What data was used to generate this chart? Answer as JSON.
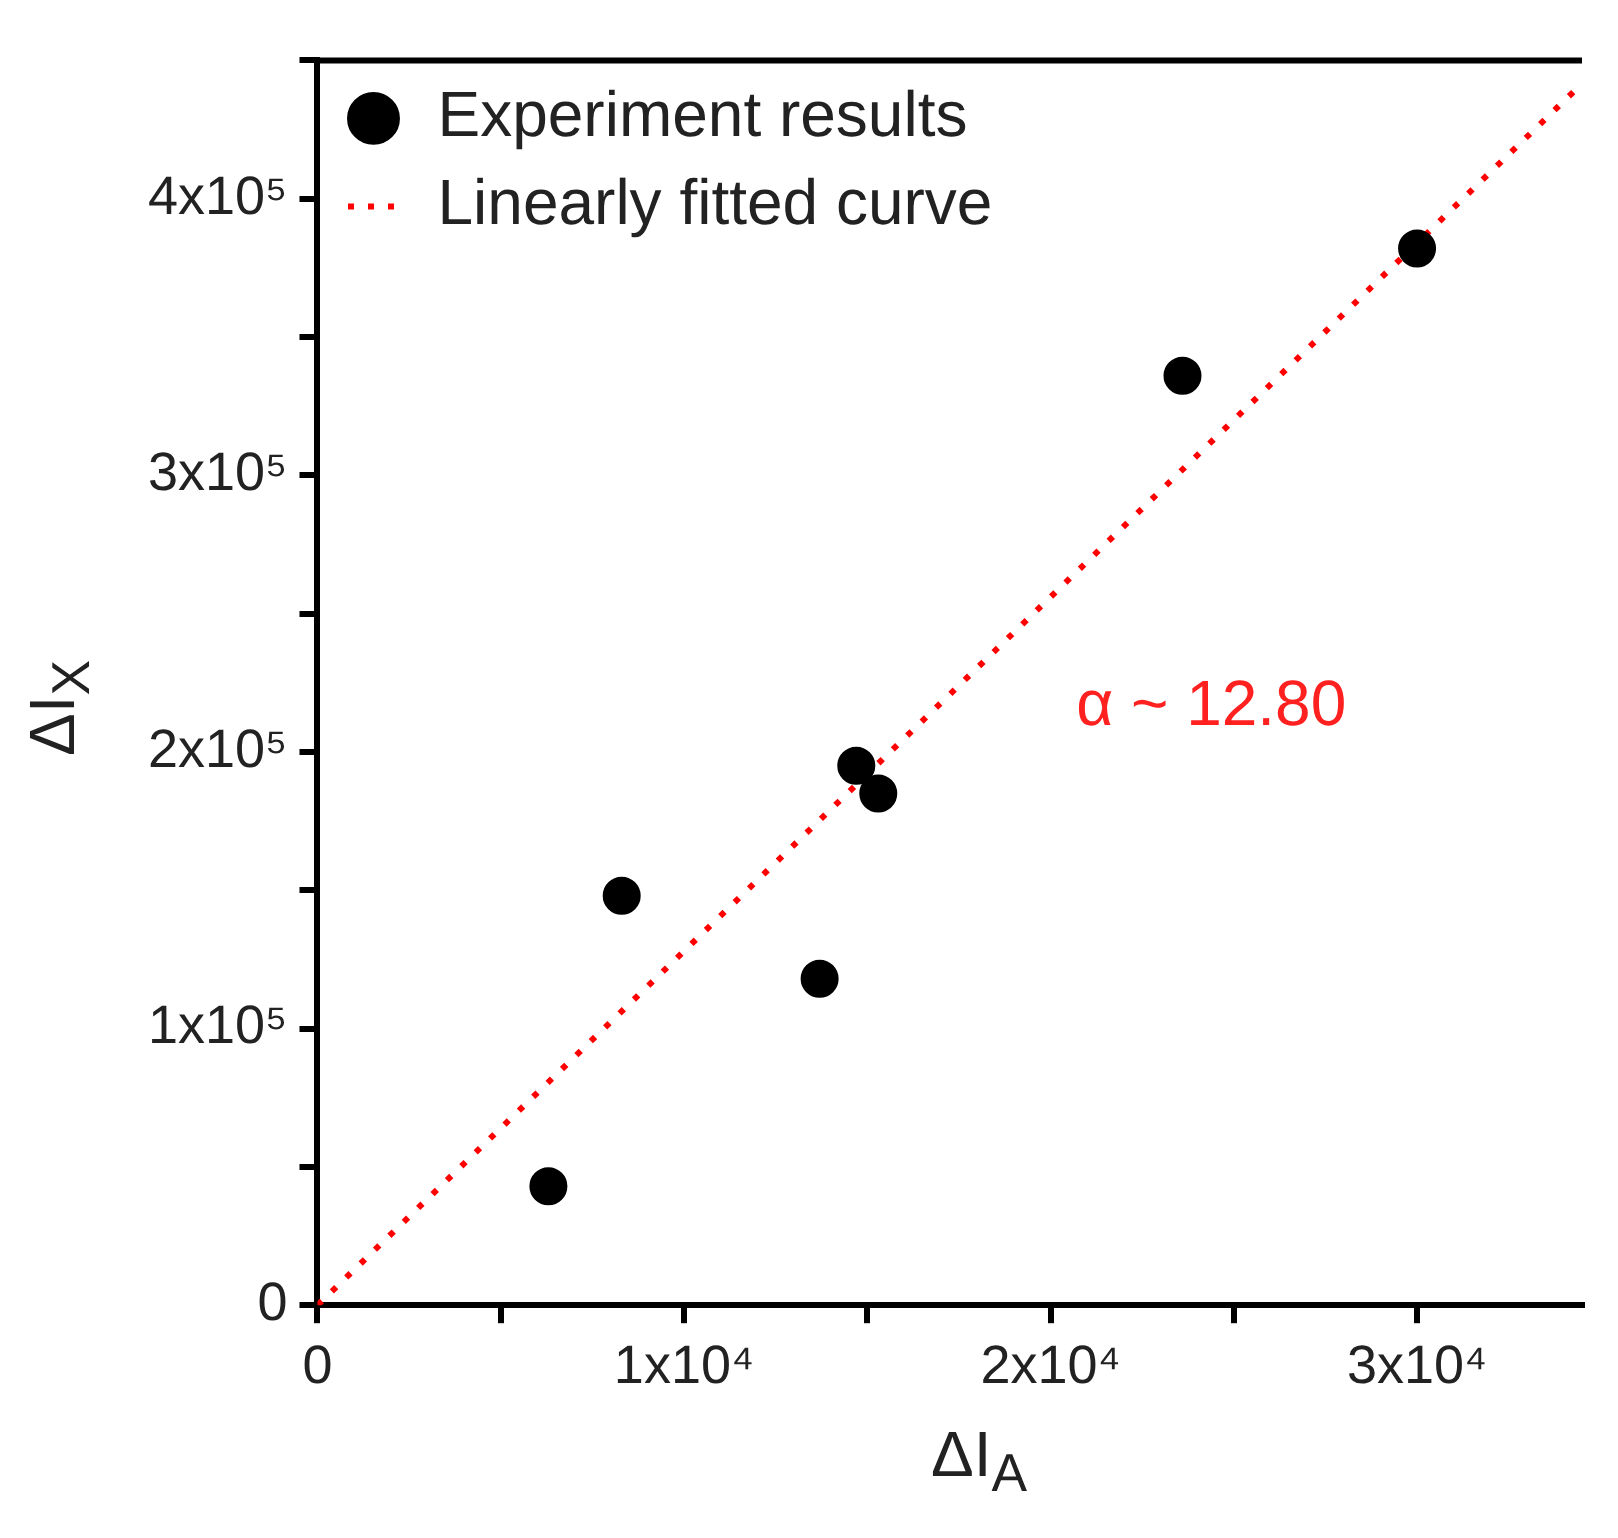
{
  "chart_data": {
    "type": "scatter",
    "xlabel": "ΔI$_{A}$",
    "ylabel": "ΔI$_{X}$",
    "xlim": [
      0,
      34500
    ],
    "ylim": [
      0,
      450000
    ],
    "xticks": [
      0,
      {
        "value": 5000,
        "label": null
      },
      {
        "value": 10000,
        "label": "1x10⁴"
      },
      {
        "value": 15000,
        "label": null
      },
      {
        "value": 20000,
        "label": "2x10⁴"
      },
      {
        "value": 25000,
        "label": null
      },
      {
        "value": 30000,
        "label": "3x10⁴"
      }
    ],
    "yticks": [
      0,
      {
        "value": 50000,
        "label": null
      },
      {
        "value": 100000,
        "label": "1x10⁵"
      },
      {
        "value": 150000,
        "label": null
      },
      {
        "value": 200000,
        "label": "2x10⁵"
      },
      {
        "value": 250000,
        "label": null
      },
      {
        "value": 300000,
        "label": "3x10⁵"
      },
      {
        "value": 350000,
        "label": null
      },
      {
        "value": 400000,
        "label": "4x10⁵"
      },
      {
        "value": 450000,
        "label": null
      }
    ],
    "series": [
      {
        "name": "Experiment results",
        "type": "scatter",
        "color": "#000000",
        "marker": "circle",
        "x": [
          6300,
          8300,
          13700,
          14700,
          15300,
          23600,
          30000
        ],
        "values": [
          43000,
          148000,
          118000,
          195000,
          185000,
          336000,
          382000
        ]
      },
      {
        "name": "Linearly fitted curve",
        "type": "line",
        "color": "#ff0000",
        "marker": "none",
        "line_style": "dotted",
        "x": [
          0,
          34500
        ],
        "values": [
          0,
          441600
        ]
      }
    ],
    "annotations": [
      "α ~ 12.80"
    ],
    "legend": "top left",
    "grid": false
  }
}
